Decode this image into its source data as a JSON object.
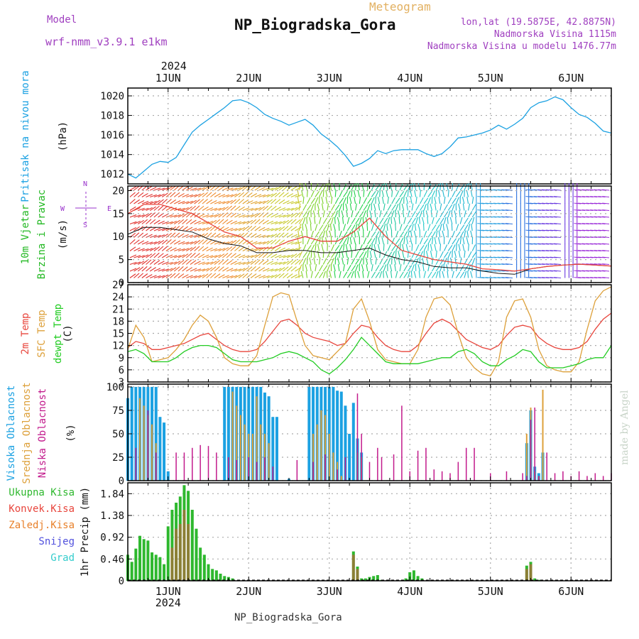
{
  "header": {
    "model_label": "Model",
    "model_name": "wrf-nmm_v3.9.1  e1km",
    "station": "NP_Biogradska_Gora",
    "meteogram": "Meteogram",
    "lonlat": "lon,lat (19.5875E, 42.8875N)",
    "elev": "Nadmorska Visina 1115m",
    "elev_model": "Nadmorska Visina u modelu 1476.77m",
    "watermark": "made by Angel",
    "footer": "NP_Biogradska_Gora"
  },
  "colors": {
    "pressure": "#1ba1e2",
    "temp2m": "#e8453c",
    "sfc": "#dda03a",
    "dew": "#22cc22",
    "high_cloud": "#1ba1e2",
    "mid_cloud": "#dda03a",
    "low_cloud": "#c21a8c",
    "precip": "#2eb82e",
    "conv": "#e8453c",
    "snow": "#5050dd",
    "hail": "#33cccc",
    "wind_lab": "#22b822",
    "dir_lab": "#9933cc"
  },
  "chart_data": [
    {
      "type": "line",
      "panel": "pressure",
      "title": "Pritisak na nivou mora",
      "ylabel": "(hPa)",
      "ylim": [
        1011,
        1020.8
      ],
      "yticks": [
        1012,
        1014,
        1016,
        1018,
        1020
      ],
      "x": [
        0.5,
        0.6,
        0.7,
        0.8,
        0.9,
        1.0,
        1.1,
        1.2,
        1.3,
        1.4,
        1.5,
        1.6,
        1.7,
        1.8,
        1.9,
        2.0,
        2.1,
        2.2,
        2.3,
        2.4,
        2.5,
        2.6,
        2.7,
        2.8,
        2.9,
        3.0,
        3.1,
        3.2,
        3.3,
        3.4,
        3.5,
        3.6,
        3.7,
        3.8,
        3.9,
        4.0,
        4.1,
        4.2,
        4.3,
        4.4,
        4.5,
        4.6,
        4.7,
        4.8,
        4.9,
        5.0,
        5.1,
        5.2,
        5.3,
        5.4,
        5.5,
        5.6,
        5.7,
        5.8,
        5.9,
        6.0,
        6.1,
        6.2,
        6.3,
        6.4,
        6.5
      ],
      "y": [
        1012.0,
        1011.6,
        1012.3,
        1013.0,
        1013.3,
        1013.2,
        1013.7,
        1015.0,
        1016.3,
        1017.0,
        1017.6,
        1018.2,
        1018.8,
        1019.5,
        1019.6,
        1019.3,
        1018.8,
        1018.1,
        1017.7,
        1017.4,
        1017.0,
        1017.3,
        1017.6,
        1017.0,
        1016.1,
        1015.5,
        1014.8,
        1013.9,
        1012.8,
        1013.1,
        1013.6,
        1014.4,
        1014.1,
        1014.4,
        1014.5,
        1014.5,
        1014.5,
        1014.1,
        1013.8,
        1014.1,
        1014.8,
        1015.7,
        1015.8,
        1016.0,
        1016.2,
        1016.5,
        1017.0,
        1016.6,
        1017.1,
        1017.7,
        1018.8,
        1019.3,
        1019.5,
        1019.9,
        1019.6,
        1018.8,
        1018.1,
        1017.8,
        1017.2,
        1016.4,
        1016.2
      ]
    },
    {
      "type": "line",
      "panel": "wind",
      "title": "10m Vjetar",
      "subtitle": "Brzina i Pravac",
      "ylabel": "(m/s)",
      "ylim": [
        0,
        21
      ],
      "yticks": [
        0,
        5,
        10,
        15,
        20
      ],
      "compass": [
        "N",
        "W",
        "E",
        "S"
      ],
      "x": [
        0.5,
        0.7,
        0.9,
        1.1,
        1.3,
        1.5,
        1.7,
        1.9,
        2.1,
        2.3,
        2.5,
        2.7,
        2.9,
        3.1,
        3.3,
        3.5,
        3.7,
        3.9,
        4.1,
        4.3,
        4.5,
        4.7,
        4.9,
        5.1,
        5.3,
        5.5,
        5.7,
        5.9,
        6.1,
        6.3,
        6.5
      ],
      "series": [
        {
          "name": "speed",
          "values": [
            10.5,
            12,
            12,
            11.5,
            11,
            9.5,
            8.5,
            8,
            6.5,
            6.5,
            7,
            7,
            6.5,
            6.5,
            7,
            7.5,
            6,
            5,
            4.5,
            3.5,
            3.2,
            3.2,
            2.5,
            2,
            1.8,
            3,
            3.5,
            3.8,
            4,
            3.8,
            3.6
          ]
        },
        {
          "name": "gust",
          "values": [
            15,
            17,
            17,
            16,
            15,
            13,
            11,
            10,
            7.5,
            7.5,
            9,
            10,
            9,
            9,
            11,
            14,
            10,
            7,
            6,
            5,
            4.5,
            4,
            3,
            2.8,
            2.5,
            3,
            3.5,
            3.8,
            4,
            3.8,
            3.6
          ]
        }
      ],
      "barb_colors": [
        "#e0302c",
        "#e85a2a",
        "#ee8a2a",
        "#e0a12a",
        "#c8c82a",
        "#7bd22a",
        "#22d24a",
        "#20c8a0",
        "#20c8c8",
        "#20b8d0",
        "#2aa0e0",
        "#2a70e0",
        "#6a3ae0",
        "#9a2ad8"
      ]
    },
    {
      "type": "line",
      "panel": "temperature",
      "ylabels": [
        "2m Temp",
        "SFC Temp",
        "dewpt Temp"
      ],
      "ylabel": "(C)",
      "ylim": [
        3,
        27
      ],
      "yticks": [
        3,
        6,
        9,
        12,
        15,
        18,
        21,
        24,
        27
      ],
      "x": [
        0.5,
        0.6,
        0.7,
        0.8,
        0.9,
        1.0,
        1.1,
        1.2,
        1.3,
        1.4,
        1.5,
        1.6,
        1.7,
        1.8,
        1.9,
        2.0,
        2.1,
        2.2,
        2.3,
        2.4,
        2.5,
        2.6,
        2.7,
        2.8,
        2.9,
        3.0,
        3.1,
        3.2,
        3.3,
        3.4,
        3.5,
        3.6,
        3.7,
        3.8,
        3.9,
        4.0,
        4.1,
        4.2,
        4.3,
        4.4,
        4.5,
        4.6,
        4.7,
        4.8,
        4.9,
        5.0,
        5.1,
        5.2,
        5.3,
        5.4,
        5.5,
        5.6,
        5.7,
        5.8,
        5.9,
        6.0,
        6.1,
        6.2,
        6.3,
        6.4,
        6.5
      ],
      "series": [
        {
          "name": "2m Temp",
          "values": [
            11.5,
            13,
            12.5,
            11,
            11,
            11.5,
            12,
            12.5,
            13.5,
            14.5,
            15,
            13.5,
            12,
            11,
            10.5,
            10.5,
            11,
            13,
            15.5,
            18,
            18.5,
            17,
            15,
            14,
            13.5,
            13,
            12,
            12.5,
            15,
            17,
            16.5,
            14,
            12,
            11,
            10.5,
            10.5,
            12,
            15,
            17.5,
            18.5,
            17.5,
            15.5,
            13.5,
            12.5,
            11.5,
            11,
            12,
            14.5,
            16.5,
            17,
            16.5,
            14,
            12.5,
            11.5,
            11,
            11,
            11.5,
            13,
            16,
            18.5,
            20
          ]
        },
        {
          "name": "SFC Temp",
          "values": [
            11,
            17,
            14,
            8,
            8.5,
            9,
            11,
            13.5,
            17,
            19.5,
            18,
            14,
            9,
            7.5,
            7,
            7,
            9.5,
            17,
            24,
            25,
            24.5,
            18,
            12,
            9.5,
            9,
            8.5,
            10.5,
            12.5,
            21,
            23.5,
            18,
            11,
            8.5,
            8,
            7.5,
            7.5,
            11,
            19,
            23.5,
            24,
            22,
            15,
            9,
            6.5,
            5,
            4.5,
            8,
            19,
            23,
            23.5,
            19,
            11,
            7,
            6,
            5.5,
            5.5,
            8,
            16,
            23,
            25.5,
            26.5
          ]
        },
        {
          "name": "dewpt Temp",
          "values": [
            10.5,
            11,
            10,
            8,
            8,
            8,
            9,
            10.5,
            11.5,
            12,
            12,
            11.5,
            10,
            8.5,
            8,
            8,
            8,
            8.5,
            9,
            10,
            10.5,
            10,
            9,
            8,
            6,
            5,
            6.5,
            8.5,
            11,
            14,
            12,
            10,
            8,
            7.5,
            7.5,
            7.5,
            7.5,
            8,
            8.5,
            9,
            9,
            10.5,
            11,
            10,
            8,
            7,
            7,
            8.5,
            9.5,
            11,
            10.5,
            8,
            6.5,
            6.5,
            6.5,
            7,
            7.5,
            8.5,
            9,
            9,
            12
          ]
        }
      ]
    },
    {
      "type": "bar",
      "panel": "cloud",
      "ylabels": [
        "Visoka Oblacnost",
        "Srednja Oblacnost",
        "Niska Oblacnost"
      ],
      "ylabel": "(%)",
      "ylim": [
        0,
        103
      ],
      "yticks": [
        0,
        25,
        50,
        75,
        100
      ],
      "series": [
        {
          "name": "Visoka Oblacnost",
          "x": [
            0.5,
            0.55,
            0.6,
            0.65,
            0.7,
            0.75,
            0.8,
            0.85,
            0.9,
            0.95,
            1.0,
            1.7,
            1.75,
            1.8,
            1.85,
            1.9,
            1.95,
            2.0,
            2.05,
            2.1,
            2.15,
            2.2,
            2.25,
            2.3,
            2.35,
            2.5,
            2.75,
            2.8,
            2.85,
            2.9,
            2.95,
            3.0,
            3.05,
            3.1,
            3.15,
            3.2,
            3.25,
            3.3,
            3.35,
            3.4,
            5.45,
            5.5,
            5.55,
            5.6,
            5.65
          ],
          "values": [
            88,
            100,
            100,
            100,
            100,
            100,
            100,
            100,
            68,
            62,
            10,
            100,
            100,
            100,
            100,
            100,
            100,
            100,
            100,
            100,
            100,
            94,
            90,
            68,
            68,
            2,
            100,
            100,
            100,
            100,
            100,
            100,
            100,
            96,
            95,
            80,
            50,
            83,
            45,
            30,
            40,
            75,
            15,
            8,
            30
          ]
        },
        {
          "name": "Srednja Oblacnost",
          "x": [
            0.65,
            0.7,
            0.75,
            0.8,
            0.85,
            1.8,
            1.85,
            1.9,
            1.95,
            2.0,
            2.05,
            2.1,
            2.15,
            2.2,
            2.25,
            2.8,
            2.85,
            2.9,
            2.95,
            3.0,
            3.05,
            3.1,
            3.15,
            3.35,
            3.4,
            5.45,
            5.5,
            5.55,
            5.6,
            5.65
          ],
          "values": [
            88,
            80,
            70,
            60,
            40,
            95,
            80,
            70,
            60,
            50,
            50,
            90,
            60,
            50,
            40,
            50,
            60,
            75,
            70,
            50,
            30,
            20,
            5,
            30,
            25,
            50,
            78,
            10,
            5,
            97
          ]
        },
        {
          "name": "Niska Oblacnost",
          "x": [
            0.6,
            0.75,
            0.85,
            1.1,
            1.2,
            1.3,
            1.4,
            1.5,
            1.6,
            1.75,
            1.85,
            2.0,
            2.1,
            2.2,
            2.3,
            2.6,
            2.8,
            2.95,
            3.1,
            3.2,
            3.35,
            3.4,
            3.5,
            3.6,
            3.65,
            3.8,
            3.9,
            4.0,
            4.1,
            4.2,
            4.3,
            4.4,
            4.5,
            4.6,
            4.7,
            4.8,
            5.0,
            5.2,
            5.4,
            5.45,
            5.5,
            5.55,
            5.6,
            5.7,
            5.8,
            5.9,
            6.0,
            6.1,
            6.2,
            6.3,
            6.4,
            6.5
          ],
          "values": [
            35,
            75,
            30,
            30,
            30,
            35,
            38,
            37,
            30,
            25,
            22,
            25,
            20,
            25,
            15,
            22,
            20,
            28,
            12,
            25,
            93,
            50,
            20,
            35,
            25,
            28,
            80,
            10,
            32,
            35,
            12,
            10,
            8,
            20,
            35,
            35,
            8,
            10,
            8,
            5,
            65,
            78,
            5,
            30,
            8,
            10,
            5,
            10,
            5,
            8,
            5,
            8
          ]
        }
      ]
    },
    {
      "type": "bar",
      "panel": "precip",
      "ylabels": [
        "Ukupna Kisa",
        "Konvek.Kisa",
        "Zaledj.Kisa",
        "Snijeg",
        "Grad"
      ],
      "ylabel": "1hr Precip (mm)",
      "ylim": [
        0,
        2.07
      ],
      "yticks": [
        0,
        0.46,
        0.92,
        1.38,
        1.84
      ],
      "series": [
        {
          "name": "Ukupna Kisa",
          "x": [
            0.5,
            0.55,
            0.6,
            0.65,
            0.7,
            0.75,
            0.8,
            0.85,
            0.9,
            0.95,
            1.0,
            1.05,
            1.1,
            1.15,
            1.2,
            1.25,
            1.3,
            1.35,
            1.4,
            1.45,
            1.5,
            1.55,
            1.6,
            1.65,
            1.7,
            1.75,
            1.8,
            3.3,
            3.35,
            3.4,
            3.45,
            3.5,
            3.55,
            3.6,
            3.65,
            3.95,
            4.0,
            4.05,
            4.1,
            4.15,
            5.45,
            5.5,
            5.55,
            5.6
          ],
          "values": [
            0.55,
            0.4,
            0.68,
            0.95,
            0.88,
            0.85,
            0.6,
            0.55,
            0.5,
            0.35,
            1.15,
            1.5,
            1.65,
            1.78,
            2.02,
            1.9,
            1.5,
            1.1,
            0.7,
            0.55,
            0.35,
            0.25,
            0.22,
            0.15,
            0.1,
            0.08,
            0.05,
            0.62,
            0.3,
            0.05,
            0.05,
            0.08,
            0.1,
            0.12,
            0.02,
            0.05,
            0.18,
            0.22,
            0.1,
            0.05,
            0.32,
            0.4,
            0.05,
            0.02
          ]
        },
        {
          "name": "Konvek.Kisa",
          "x": [
            1.05,
            1.1,
            1.15,
            1.2,
            1.25,
            3.3,
            3.35,
            5.45,
            5.5
          ],
          "values": [
            0.7,
            1.1,
            1.2,
            1.5,
            1.2,
            0.55,
            0.25,
            0.25,
            0.35
          ]
        }
      ]
    }
  ],
  "axis": {
    "days": [
      {
        "label": "1JUN",
        "x": 1
      },
      {
        "label": "2JUN",
        "x": 2
      },
      {
        "label": "3JUN",
        "x": 3
      },
      {
        "label": "4JUN",
        "x": 4
      },
      {
        "label": "5JUN",
        "x": 5
      },
      {
        "label": "6JUN",
        "x": 6
      }
    ],
    "year": "2024",
    "xrange": [
      0.5,
      6.5
    ]
  }
}
